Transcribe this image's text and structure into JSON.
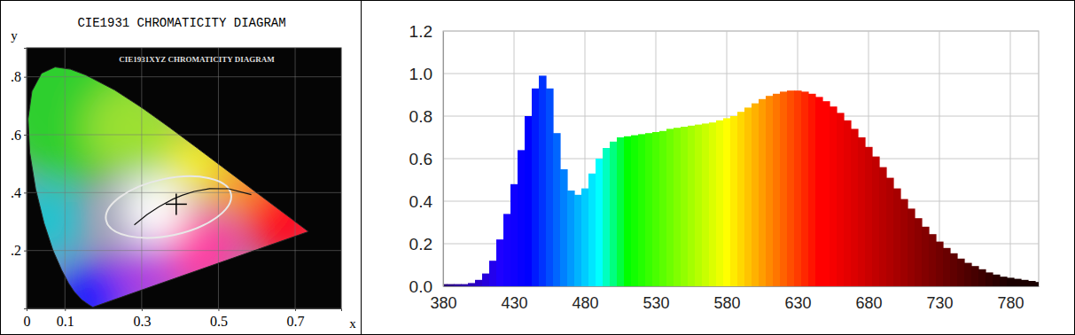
{
  "chart_data": [
    {
      "type": "chromaticity",
      "title": "CIE1931 CHROMATICITY DIAGRAM",
      "subtitle": "CIE1931XYZ CHROMATICITY DIAGRAM",
      "x_label": "x",
      "y_label": "y",
      "xlim": [
        0,
        0.82
      ],
      "ylim": [
        0,
        0.9
      ],
      "xticks": [
        0,
        0.1,
        0.3,
        0.5,
        0.7
      ],
      "yticks": [
        {
          "value": 0.2,
          "label": ".2"
        },
        {
          "value": 0.4,
          "label": ".4"
        },
        {
          "value": 0.6,
          "label": ".6"
        },
        {
          "value": 0.8,
          "label": ".8"
        }
      ],
      "grid": true,
      "locus": {
        "x": [
          0.1741,
          0.1733,
          0.1714,
          0.1644,
          0.1566,
          0.144,
          0.1241,
          0.1096,
          0.0913,
          0.0687,
          0.0454,
          0.0235,
          0.0082,
          0.0039,
          0.0139,
          0.0389,
          0.0743,
          0.1142,
          0.1547,
          0.2296,
          0.3016,
          0.3731,
          0.4441,
          0.5125,
          0.5752,
          0.627,
          0.6915,
          0.719,
          0.7347
        ],
        "y": [
          0.005,
          0.0048,
          0.0051,
          0.0109,
          0.0177,
          0.0297,
          0.0578,
          0.0868,
          0.1327,
          0.2007,
          0.295,
          0.4127,
          0.5384,
          0.6548,
          0.7502,
          0.812,
          0.8338,
          0.8262,
          0.8059,
          0.7543,
          0.6923,
          0.6245,
          0.5547,
          0.4866,
          0.4242,
          0.3725,
          0.3083,
          0.2809,
          0.2653
        ]
      },
      "planckian": {
        "x": [
          0.5857,
          0.5267,
          0.477,
          0.4369,
          0.4053,
          0.3805,
          0.3451,
          0.3135,
          0.2807
        ],
        "y": [
          0.3931,
          0.4133,
          0.4137,
          0.4041,
          0.3907,
          0.3768,
          0.3516,
          0.3237,
          0.2884
        ]
      },
      "point": {
        "x": 0.39,
        "y": 0.36
      }
    },
    {
      "type": "bar",
      "x": [
        380,
        385,
        390,
        395,
        400,
        405,
        410,
        415,
        420,
        425,
        430,
        435,
        440,
        445,
        450,
        455,
        460,
        465,
        470,
        475,
        480,
        485,
        490,
        495,
        500,
        505,
        510,
        515,
        520,
        525,
        530,
        535,
        540,
        545,
        550,
        555,
        560,
        565,
        570,
        575,
        580,
        585,
        590,
        595,
        600,
        605,
        610,
        615,
        620,
        625,
        630,
        635,
        640,
        645,
        650,
        655,
        660,
        665,
        670,
        675,
        680,
        685,
        690,
        695,
        700,
        705,
        710,
        715,
        720,
        725,
        730,
        735,
        740,
        745,
        750,
        755,
        760,
        765,
        770,
        775,
        780,
        785,
        790,
        795,
        800
      ],
      "values": [
        0.01,
        0.01,
        0.01,
        0.01,
        0.015,
        0.03,
        0.06,
        0.12,
        0.22,
        0.34,
        0.48,
        0.64,
        0.8,
        0.93,
        0.99,
        0.93,
        0.72,
        0.55,
        0.45,
        0.43,
        0.46,
        0.53,
        0.6,
        0.65,
        0.68,
        0.7,
        0.705,
        0.71,
        0.715,
        0.72,
        0.725,
        0.73,
        0.74,
        0.745,
        0.75,
        0.755,
        0.76,
        0.765,
        0.77,
        0.78,
        0.79,
        0.8,
        0.82,
        0.84,
        0.86,
        0.88,
        0.895,
        0.905,
        0.915,
        0.92,
        0.92,
        0.915,
        0.905,
        0.89,
        0.87,
        0.845,
        0.815,
        0.78,
        0.74,
        0.7,
        0.655,
        0.61,
        0.56,
        0.51,
        0.46,
        0.41,
        0.365,
        0.32,
        0.28,
        0.245,
        0.21,
        0.18,
        0.155,
        0.13,
        0.11,
        0.095,
        0.08,
        0.065,
        0.055,
        0.045,
        0.04,
        0.035,
        0.03,
        0.025,
        0.02
      ],
      "xlim": [
        380,
        800
      ],
      "xticks": [
        380,
        430,
        480,
        530,
        580,
        630,
        680,
        730,
        780
      ],
      "ylim": [
        0,
        1.2
      ],
      "yticks": [
        {
          "value": 0,
          "label": "0.0"
        },
        0.2,
        0.4,
        0.6,
        0.8,
        {
          "value": 1,
          "label": "1.0"
        },
        1.2
      ],
      "grid": true
    }
  ]
}
